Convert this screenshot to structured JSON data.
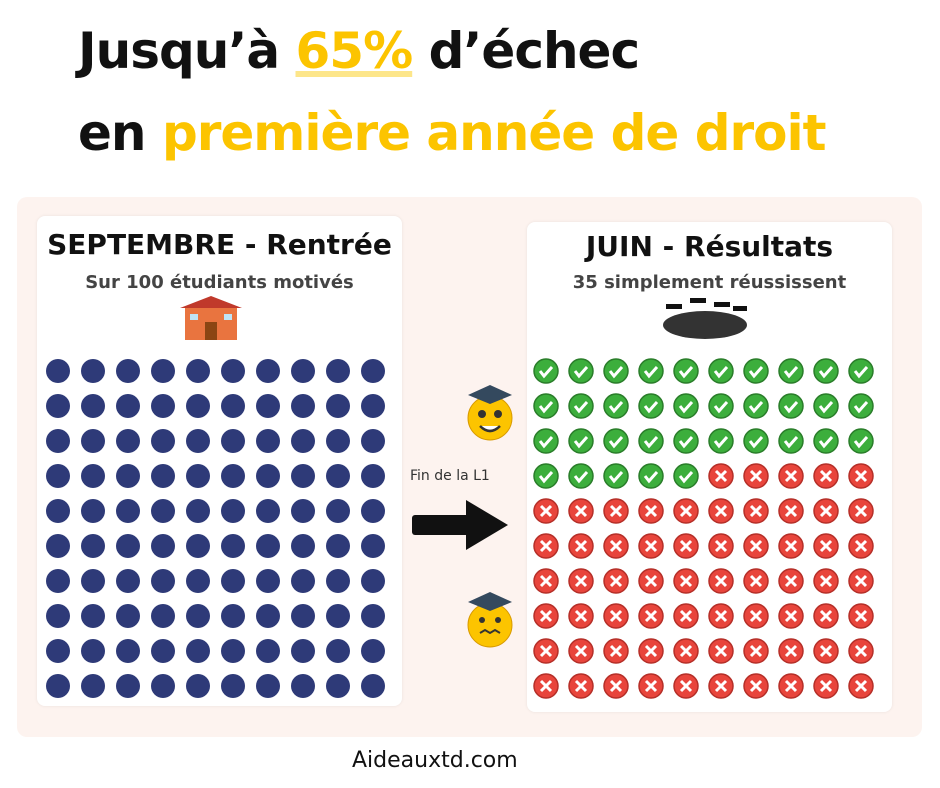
{
  "header": {
    "line1": {
      "before": "Jusqu’à",
      "highlight": "65%",
      "after": "d’échec"
    },
    "line2": {
      "before": "en",
      "highlight": "première année de droit"
    }
  },
  "left_panel": {
    "title": "SEPTEMBRE - Rentrée",
    "subtitle": "Sur 100 étudiants motivés",
    "students": 100
  },
  "right_panel": {
    "title": "JUIN - Résultats",
    "subtitle": "35 simplement réussissent",
    "passed": 35,
    "failed": 65
  },
  "arrow_label": "Fin de la L1",
  "footer": "Aideauxtd.com"
}
